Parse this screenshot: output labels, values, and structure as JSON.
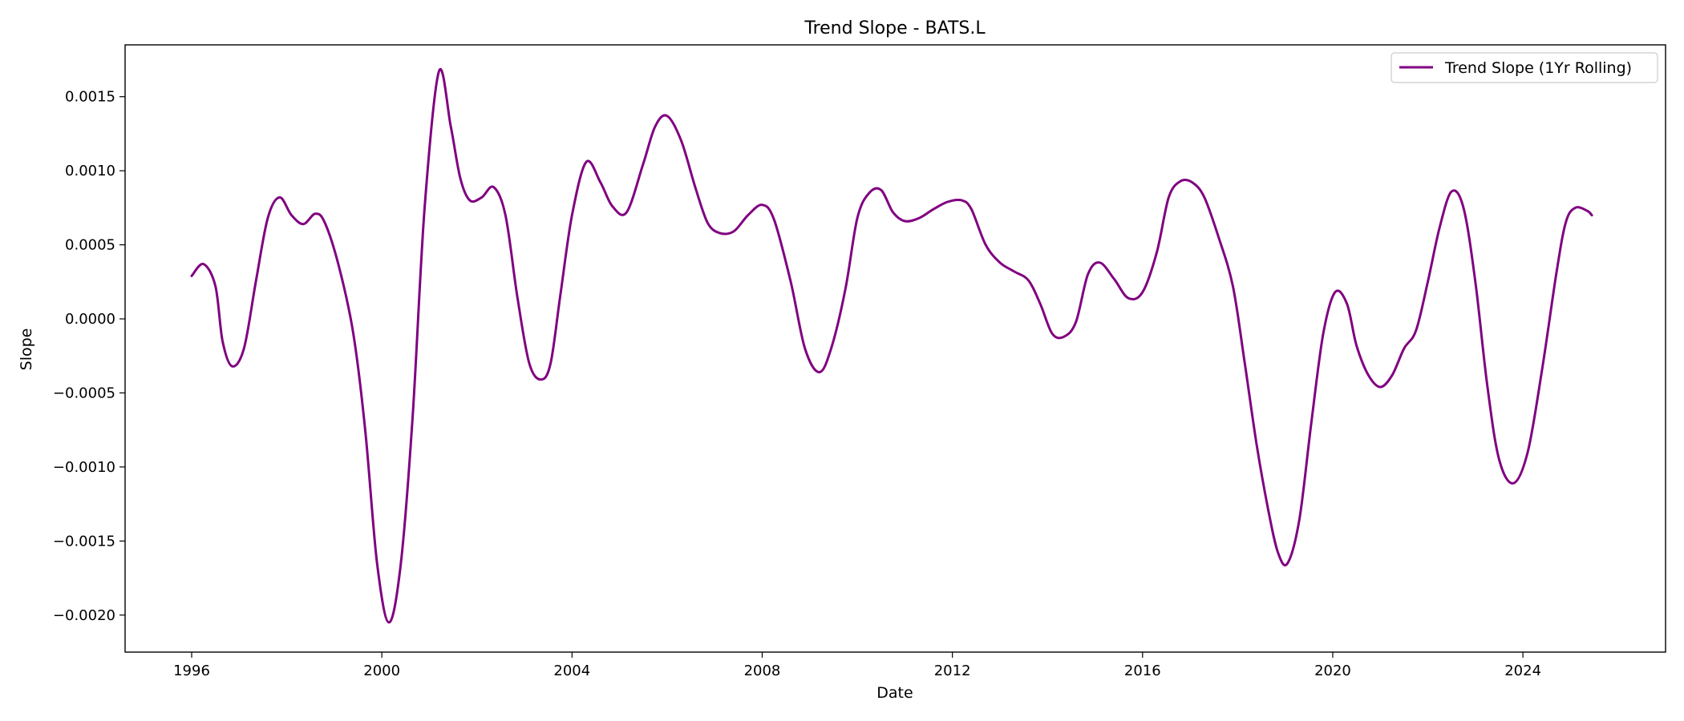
{
  "chart_data": {
    "type": "line",
    "title": "Trend Slope - BATS.L",
    "xlabel": "Date",
    "ylabel": "Slope",
    "xlim": [
      1994.6,
      2027.0
    ],
    "ylim": [
      -0.00225,
      0.00185
    ],
    "x_ticks": [
      1996,
      2000,
      2004,
      2008,
      2012,
      2016,
      2020,
      2024
    ],
    "x_tick_labels": [
      "1996",
      "2000",
      "2004",
      "2008",
      "2012",
      "2016",
      "2020",
      "2024"
    ],
    "y_ticks": [
      0.0015,
      0.001,
      0.0005,
      0.0,
      -0.0005,
      -0.001,
      -0.0015,
      -0.002
    ],
    "y_tick_labels": [
      "0.0015",
      "0.0010",
      "0.0005",
      "0.0000",
      "−0.0005",
      "−0.0010",
      "−0.0015",
      "−0.0020"
    ],
    "grid": false,
    "legend_position": "top-right",
    "series": [
      {
        "name": "Trend Slope (1Yr Rolling)",
        "color": "#800080",
        "points": [
          [
            1996.0,
            0.00029
          ],
          [
            1996.25,
            0.00037
          ],
          [
            1996.5,
            0.00022
          ],
          [
            1996.65,
            -0.00015
          ],
          [
            1996.85,
            -0.00032
          ],
          [
            1997.1,
            -0.0002
          ],
          [
            1997.35,
            0.00025
          ],
          [
            1997.6,
            0.00068
          ],
          [
            1997.85,
            0.00082
          ],
          [
            1998.1,
            0.0007
          ],
          [
            1998.35,
            0.00064
          ],
          [
            1998.6,
            0.00071
          ],
          [
            1998.8,
            0.00065
          ],
          [
            1999.1,
            0.00035
          ],
          [
            1999.4,
            -0.0001
          ],
          [
            1999.65,
            -0.00075
          ],
          [
            1999.9,
            -0.00165
          ],
          [
            2000.15,
            -0.00205
          ],
          [
            2000.4,
            -0.00165
          ],
          [
            2000.65,
            -0.00065
          ],
          [
            2000.9,
            0.00075
          ],
          [
            2001.2,
            0.00167
          ],
          [
            2001.45,
            0.0013
          ],
          [
            2001.65,
            0.00095
          ],
          [
            2001.85,
            0.0008
          ],
          [
            2002.1,
            0.00082
          ],
          [
            2002.35,
            0.00089
          ],
          [
            2002.6,
            0.0007
          ],
          [
            2002.85,
            0.00015
          ],
          [
            2003.1,
            -0.0003
          ],
          [
            2003.35,
            -0.00041
          ],
          [
            2003.55,
            -0.0003
          ],
          [
            2003.75,
            0.00015
          ],
          [
            2004.0,
            0.0007
          ],
          [
            2004.3,
            0.00106
          ],
          [
            2004.6,
            0.00092
          ],
          [
            2004.85,
            0.00076
          ],
          [
            2005.15,
            0.00072
          ],
          [
            2005.5,
            0.00105
          ],
          [
            2005.75,
            0.0013
          ],
          [
            2006.0,
            0.00137
          ],
          [
            2006.3,
            0.0012
          ],
          [
            2006.6,
            0.00088
          ],
          [
            2006.85,
            0.00065
          ],
          [
            2007.1,
            0.00058
          ],
          [
            2007.4,
            0.00059
          ],
          [
            2007.7,
            0.0007
          ],
          [
            2008.0,
            0.00077
          ],
          [
            2008.25,
            0.00067
          ],
          [
            2008.6,
            0.00025
          ],
          [
            2008.9,
            -0.0002
          ],
          [
            2009.2,
            -0.00036
          ],
          [
            2009.45,
            -0.0002
          ],
          [
            2009.75,
            0.0002
          ],
          [
            2010.0,
            0.00068
          ],
          [
            2010.25,
            0.00085
          ],
          [
            2010.5,
            0.00087
          ],
          [
            2010.75,
            0.00072
          ],
          [
            2011.0,
            0.00066
          ],
          [
            2011.3,
            0.00068
          ],
          [
            2011.6,
            0.00074
          ],
          [
            2011.9,
            0.00079
          ],
          [
            2012.2,
            0.0008
          ],
          [
            2012.4,
            0.00074
          ],
          [
            2012.7,
            0.0005
          ],
          [
            2013.0,
            0.00038
          ],
          [
            2013.3,
            0.00032
          ],
          [
            2013.6,
            0.00026
          ],
          [
            2013.85,
            0.0001
          ],
          [
            2014.1,
            -0.0001
          ],
          [
            2014.35,
            -0.00012
          ],
          [
            2014.6,
            -2e-05
          ],
          [
            2014.85,
            0.0003
          ],
          [
            2015.1,
            0.00038
          ],
          [
            2015.4,
            0.00027
          ],
          [
            2015.7,
            0.00014
          ],
          [
            2016.0,
            0.00018
          ],
          [
            2016.3,
            0.00045
          ],
          [
            2016.55,
            0.00082
          ],
          [
            2016.8,
            0.00093
          ],
          [
            2017.05,
            0.00092
          ],
          [
            2017.3,
            0.00082
          ],
          [
            2017.6,
            0.00055
          ],
          [
            2017.9,
            0.00022
          ],
          [
            2018.15,
            -0.0003
          ],
          [
            2018.4,
            -0.00085
          ],
          [
            2018.65,
            -0.0013
          ],
          [
            2018.85,
            -0.00158
          ],
          [
            2019.05,
            -0.00165
          ],
          [
            2019.3,
            -0.00135
          ],
          [
            2019.55,
            -0.0007
          ],
          [
            2019.8,
            -0.0001
          ],
          [
            2020.05,
            0.00018
          ],
          [
            2020.3,
            0.0001
          ],
          [
            2020.5,
            -0.00018
          ],
          [
            2020.75,
            -0.00038
          ],
          [
            2021.0,
            -0.00046
          ],
          [
            2021.25,
            -0.00038
          ],
          [
            2021.5,
            -0.0002
          ],
          [
            2021.75,
            -8e-05
          ],
          [
            2022.0,
            0.00025
          ],
          [
            2022.25,
            0.00062
          ],
          [
            2022.5,
            0.00086
          ],
          [
            2022.75,
            0.00075
          ],
          [
            2023.0,
            0.00025
          ],
          [
            2023.25,
            -0.00045
          ],
          [
            2023.5,
            -0.00095
          ],
          [
            2023.8,
            -0.00111
          ],
          [
            2024.1,
            -0.0009
          ],
          [
            2024.4,
            -0.00035
          ],
          [
            2024.7,
            0.0003
          ],
          [
            2024.9,
            0.00065
          ],
          [
            2025.1,
            0.00075
          ],
          [
            2025.35,
            0.00073
          ],
          [
            2025.45,
            0.0007
          ]
        ]
      }
    ]
  }
}
